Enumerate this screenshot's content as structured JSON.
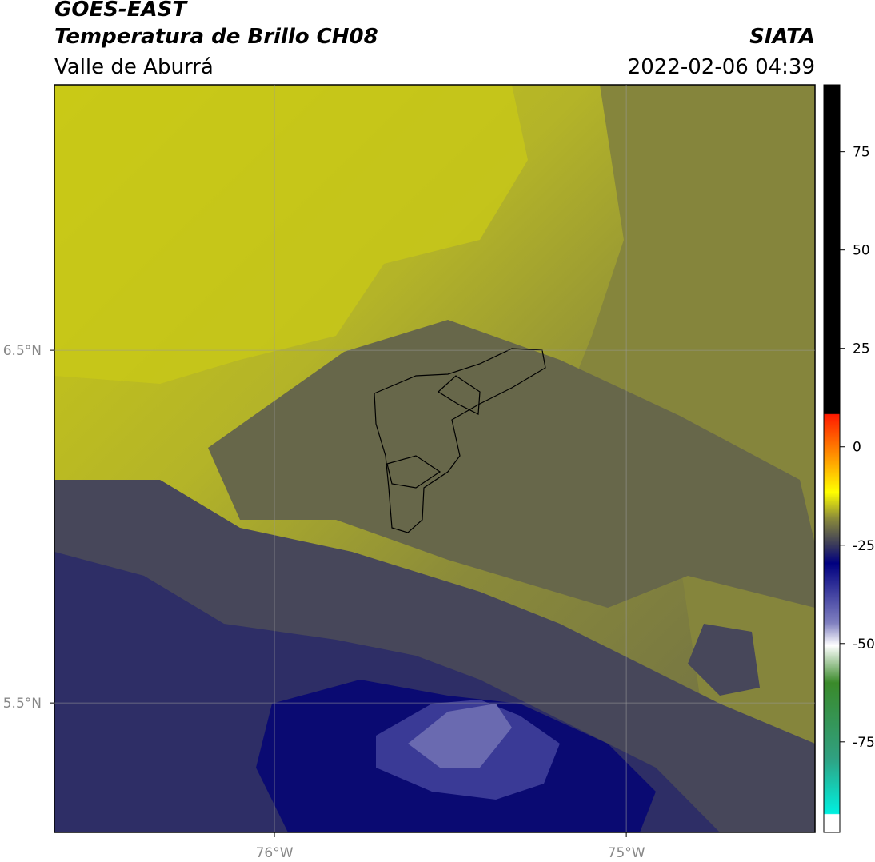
{
  "header": {
    "title": "GOES-EAST",
    "subtitle": "Temperatura de Brillo CH08",
    "region": "Valle de Aburrá",
    "source": "SIATA",
    "datetime": "2022-02-06 04:39"
  },
  "map": {
    "xlim": [
      -76.625,
      -74.464
    ],
    "ylim": [
      5.133,
      7.253
    ],
    "xticks": [
      {
        "value": -76,
        "label": "76°W"
      },
      {
        "value": -75,
        "label": "75°W"
      }
    ],
    "yticks": [
      {
        "value": 6.5,
        "label": "6.5°N"
      },
      {
        "value": 5.5,
        "label": "5.5°N"
      }
    ],
    "grid": true
  },
  "colorbar": {
    "lim": [
      -98,
      92
    ],
    "ticks": [
      75,
      50,
      25,
      0,
      -25,
      -50,
      -75
    ]
  }
}
